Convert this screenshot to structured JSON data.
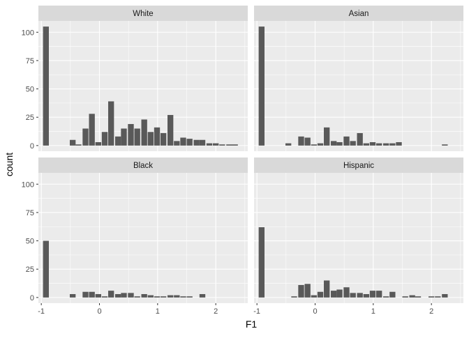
{
  "chart_data": {
    "type": "bar",
    "subtype": "histogram-faceted",
    "xlabel": "F1",
    "ylabel": "count",
    "xlim": [
      -1.05,
      2.55
    ],
    "ylim": [
      -5,
      110
    ],
    "x_ticks": [
      -1,
      0,
      1,
      2
    ],
    "x_tick_labels": [
      "-1",
      "0",
      "1",
      "2"
    ],
    "y_ticks": [
      0,
      25,
      50,
      75,
      100
    ],
    "y_tick_labels": [
      "0",
      "25",
      "50",
      "75",
      "100"
    ],
    "grid": true,
    "bar_color": "#595959",
    "panel_background": "#ebebeb",
    "strip_background": "#d9d9d9",
    "bin_width": 0.1,
    "facets": [
      {
        "name": "White",
        "bins": [
          {
            "x": -0.92,
            "y": 105
          },
          {
            "x": -0.46,
            "y": 5
          },
          {
            "x": -0.36,
            "y": 1
          },
          {
            "x": -0.24,
            "y": 15
          },
          {
            "x": -0.13,
            "y": 28
          },
          {
            "x": -0.02,
            "y": 3
          },
          {
            "x": 0.09,
            "y": 12
          },
          {
            "x": 0.2,
            "y": 39
          },
          {
            "x": 0.32,
            "y": 8
          },
          {
            "x": 0.42,
            "y": 15
          },
          {
            "x": 0.54,
            "y": 19
          },
          {
            "x": 0.65,
            "y": 15
          },
          {
            "x": 0.77,
            "y": 23
          },
          {
            "x": 0.88,
            "y": 12
          },
          {
            "x": 0.99,
            "y": 16
          },
          {
            "x": 1.1,
            "y": 11
          },
          {
            "x": 1.22,
            "y": 27
          },
          {
            "x": 1.33,
            "y": 4
          },
          {
            "x": 1.44,
            "y": 7
          },
          {
            "x": 1.55,
            "y": 6
          },
          {
            "x": 1.67,
            "y": 5
          },
          {
            "x": 1.77,
            "y": 5
          },
          {
            "x": 1.89,
            "y": 2
          },
          {
            "x": 2.0,
            "y": 2
          },
          {
            "x": 2.11,
            "y": 1
          },
          {
            "x": 2.23,
            "y": 1
          },
          {
            "x": 2.33,
            "y": 1
          }
        ]
      },
      {
        "name": "Asian",
        "bins": [
          {
            "x": -0.92,
            "y": 105
          },
          {
            "x": -0.46,
            "y": 2
          },
          {
            "x": -0.24,
            "y": 8
          },
          {
            "x": -0.13,
            "y": 7
          },
          {
            "x": -0.02,
            "y": 1
          },
          {
            "x": 0.09,
            "y": 2
          },
          {
            "x": 0.2,
            "y": 16
          },
          {
            "x": 0.32,
            "y": 4
          },
          {
            "x": 0.42,
            "y": 3
          },
          {
            "x": 0.54,
            "y": 8
          },
          {
            "x": 0.65,
            "y": 4
          },
          {
            "x": 0.77,
            "y": 11
          },
          {
            "x": 0.88,
            "y": 2
          },
          {
            "x": 0.99,
            "y": 3
          },
          {
            "x": 1.1,
            "y": 2
          },
          {
            "x": 1.22,
            "y": 2
          },
          {
            "x": 1.33,
            "y": 2
          },
          {
            "x": 1.44,
            "y": 3
          },
          {
            "x": 2.23,
            "y": 1
          }
        ]
      },
      {
        "name": "Black",
        "bins": [
          {
            "x": -0.92,
            "y": 50
          },
          {
            "x": -0.46,
            "y": 3
          },
          {
            "x": -0.24,
            "y": 5
          },
          {
            "x": -0.13,
            "y": 5
          },
          {
            "x": -0.02,
            "y": 3
          },
          {
            "x": 0.09,
            "y": 1
          },
          {
            "x": 0.2,
            "y": 6
          },
          {
            "x": 0.32,
            "y": 3
          },
          {
            "x": 0.42,
            "y": 4
          },
          {
            "x": 0.54,
            "y": 4
          },
          {
            "x": 0.65,
            "y": 1
          },
          {
            "x": 0.77,
            "y": 3
          },
          {
            "x": 0.88,
            "y": 2
          },
          {
            "x": 0.99,
            "y": 1
          },
          {
            "x": 1.1,
            "y": 1
          },
          {
            "x": 1.22,
            "y": 2
          },
          {
            "x": 1.33,
            "y": 2
          },
          {
            "x": 1.44,
            "y": 1
          },
          {
            "x": 1.55,
            "y": 1
          },
          {
            "x": 1.77,
            "y": 3
          }
        ]
      },
      {
        "name": "Hispanic",
        "bins": [
          {
            "x": -0.92,
            "y": 62
          },
          {
            "x": -0.36,
            "y": 1
          },
          {
            "x": -0.24,
            "y": 11
          },
          {
            "x": -0.13,
            "y": 12
          },
          {
            "x": -0.02,
            "y": 2
          },
          {
            "x": 0.09,
            "y": 5
          },
          {
            "x": 0.2,
            "y": 15
          },
          {
            "x": 0.32,
            "y": 6
          },
          {
            "x": 0.42,
            "y": 7
          },
          {
            "x": 0.54,
            "y": 9
          },
          {
            "x": 0.65,
            "y": 4
          },
          {
            "x": 0.77,
            "y": 4
          },
          {
            "x": 0.88,
            "y": 3
          },
          {
            "x": 0.99,
            "y": 6
          },
          {
            "x": 1.1,
            "y": 6
          },
          {
            "x": 1.22,
            "y": 1
          },
          {
            "x": 1.33,
            "y": 5
          },
          {
            "x": 1.55,
            "y": 1
          },
          {
            "x": 1.67,
            "y": 2
          },
          {
            "x": 1.77,
            "y": 1
          },
          {
            "x": 2.0,
            "y": 1
          },
          {
            "x": 2.11,
            "y": 1
          },
          {
            "x": 2.23,
            "y": 3
          }
        ]
      }
    ]
  }
}
